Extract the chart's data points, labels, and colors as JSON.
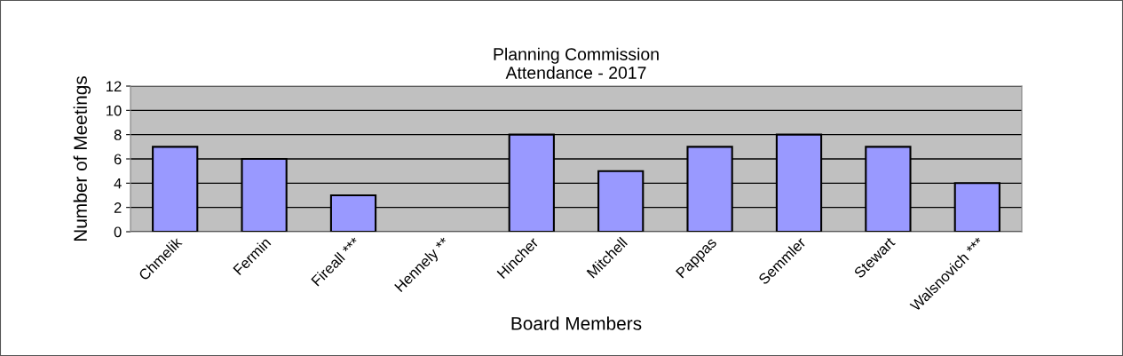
{
  "chart_data": {
    "type": "bar",
    "title": "Planning Commission\nAttendance - 2017",
    "xlabel": "Board Members",
    "ylabel": "Number of Meetings",
    "categories": [
      "Chmelik",
      "Fermin",
      "Fireall ***",
      "Hennely **",
      "Hincher",
      "Mitchell",
      "Pappas",
      "Semmler",
      "Stewart",
      "Walsnovich ***"
    ],
    "values": [
      7,
      6,
      3,
      0,
      8,
      5,
      7,
      8,
      7,
      4
    ],
    "color": "#9999ff",
    "ylim": [
      0,
      12
    ],
    "yticks": [
      0,
      2,
      4,
      6,
      8,
      10,
      12
    ],
    "grid": "y"
  }
}
